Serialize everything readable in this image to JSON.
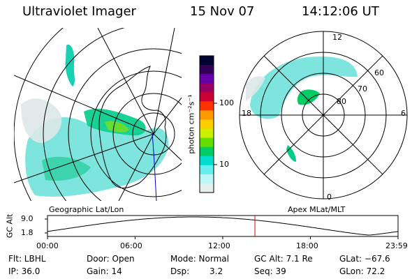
{
  "header": {
    "instrument": "Ultraviolet Imager",
    "date": "15 Nov 07",
    "time": "14:12:06 UT"
  },
  "colorbar": {
    "unit_label": "photon cm⁻²s⁻¹",
    "ticks": [
      "100",
      "10"
    ],
    "colors": [
      "#000033",
      "#330055",
      "#6600aa",
      "#990066",
      "#cc0033",
      "#ff3300",
      "#ff9900",
      "#ffcc00",
      "#ccee00",
      "#66dd00",
      "#00cc66",
      "#00ddcc",
      "#66eeee",
      "#bbf7f7",
      "#e6eeee"
    ]
  },
  "left_map": {
    "label": "Geographic Lat/Lon"
  },
  "right_map": {
    "label": "Apex MLat/MLT",
    "lat_labels": [
      "80",
      "70",
      "60"
    ],
    "mlt_labels": {
      "top": "12",
      "bottom": "0",
      "left": "18",
      "right": "6"
    }
  },
  "timeline": {
    "axis_title": "GC Alt",
    "y_ticks": [
      "9.0",
      "1.8"
    ],
    "x_ticks": [
      "00:00",
      "06:00",
      "12:00",
      "18:00",
      "23:59"
    ],
    "marker_time_hours": 14.2
  },
  "footer": {
    "filter": "Flt: LBHL",
    "ip": "IP: 36.0",
    "door": "Door: Open",
    "gain": "Gain: 14",
    "mode": "Mode: Normal",
    "dsp_label": "Dsp:",
    "dsp_value": "3.2",
    "gc_alt": "GC Alt: 7.1 Re",
    "seq": "Seq: 39",
    "glat": "GLat: −67.6",
    "glon": "GLon: 72.2"
  }
}
